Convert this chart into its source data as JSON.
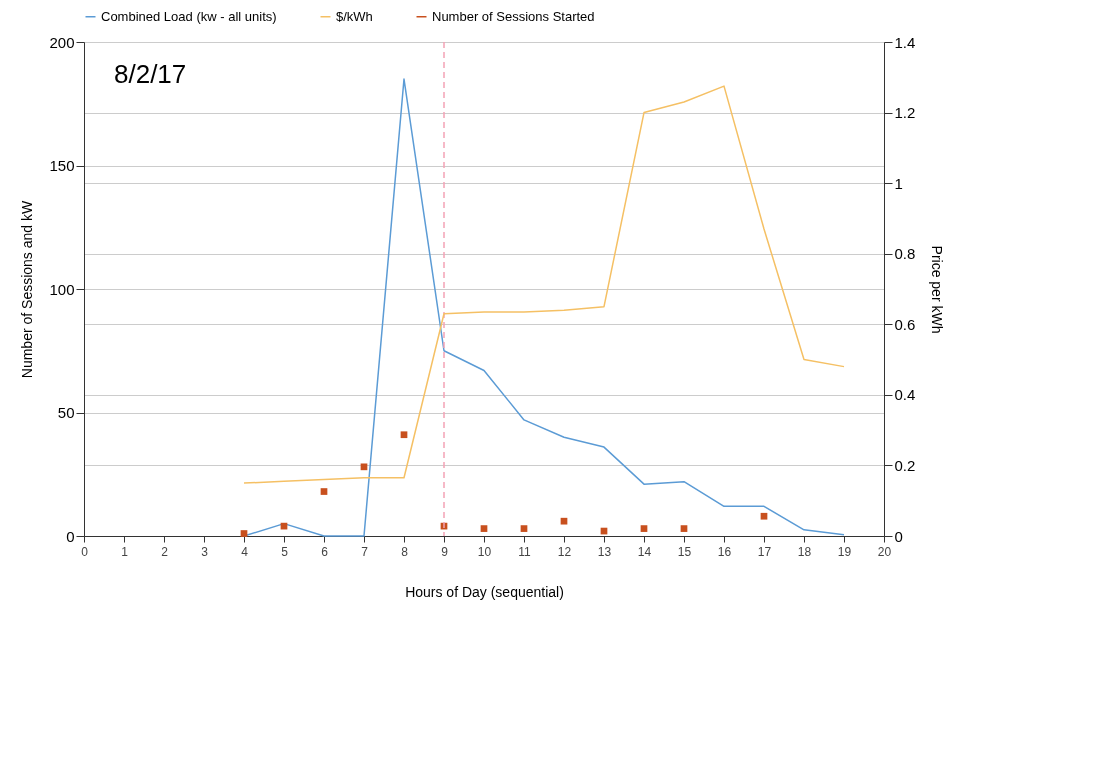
{
  "chart_data": {
    "type": "line",
    "xlabel": "Hours of Day (sequential)",
    "ylabel": "Number of Sessions and kW",
    "y2label": "Price per kWh",
    "xlim": [
      0,
      20
    ],
    "xticks": [
      0,
      1,
      2,
      3,
      4,
      5,
      6,
      7,
      8,
      9,
      10,
      11,
      12,
      13,
      14,
      15,
      16,
      17,
      18,
      19,
      20
    ],
    "ylim": [
      0,
      200
    ],
    "yticks": [
      0,
      50,
      100,
      150,
      200
    ],
    "y2lim": [
      0,
      1.4
    ],
    "y2ticks": [
      0,
      0.2,
      0.4,
      0.6,
      0.8,
      1,
      1.2,
      1.4
    ],
    "grid": "y",
    "legend": "top",
    "annotations": [
      "8/2/17"
    ],
    "ref_lines": [
      {
        "axis": "x",
        "value": 9,
        "color": "#f4a3b5",
        "line_style": "dashed"
      }
    ],
    "series": [
      {
        "name": "Combined Load (kw - all units)",
        "color": "#5b9bd5",
        "x": [
          4,
          5,
          6,
          7,
          8,
          9,
          10,
          11,
          12,
          13,
          14,
          15,
          16,
          17,
          18,
          19
        ],
        "values": [
          0,
          5,
          0,
          0,
          185,
          75,
          67,
          47,
          40,
          36,
          21,
          22,
          12,
          12,
          2.5,
          0.5
        ]
      },
      {
        "name": "$/kWh",
        "axis": "y2",
        "color": "#f5c064",
        "x": [
          4,
          5,
          6,
          7,
          8,
          9,
          10,
          11,
          12,
          13,
          14,
          15,
          16,
          17,
          18,
          19
        ],
        "values": [
          0.15,
          0.155,
          0.16,
          0.165,
          0.165,
          0.63,
          0.635,
          0.635,
          0.64,
          0.65,
          1.2,
          1.23,
          1.275,
          0.87,
          0.5,
          0.48
        ]
      },
      {
        "name": "Number of Sessions Started",
        "type": "scatter",
        "marker": "square",
        "color": "#c8501e",
        "x": [
          4,
          5,
          6,
          7,
          8,
          9,
          10,
          11,
          12,
          13,
          14,
          15,
          17
        ],
        "values": [
          1,
          4,
          18,
          28,
          41,
          4,
          3,
          3,
          6,
          2,
          3,
          3,
          8
        ]
      }
    ]
  }
}
